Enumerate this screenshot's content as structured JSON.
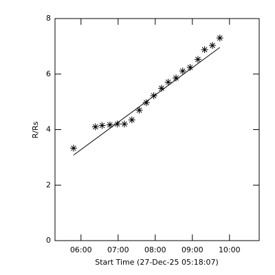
{
  "chart_data": {
    "type": "scatter",
    "ylabel": "R/Rs",
    "xlabel": "Start Time (27-Dec-25 05:18:07)",
    "xlim": [
      5.3,
      10.8
    ],
    "ylim": [
      0,
      8
    ],
    "xticks": [
      {
        "value": 6,
        "label": "06:00"
      },
      {
        "value": 7,
        "label": "07:00"
      },
      {
        "value": 8,
        "label": "08:00"
      },
      {
        "value": 9,
        "label": "09:00"
      },
      {
        "value": 10,
        "label": "10:00"
      }
    ],
    "yticks": [
      0,
      2,
      4,
      6,
      8
    ],
    "series": [
      {
        "marker": "asterisk",
        "color": "#000000",
        "x": [
          5.8,
          6.39,
          6.57,
          6.78,
          6.98,
          7.17,
          7.37,
          7.57,
          7.76,
          7.96,
          8.17,
          8.35,
          8.56,
          8.74,
          8.94,
          9.15,
          9.33,
          9.54,
          9.74
        ],
        "values": [
          3.33,
          4.1,
          4.15,
          4.17,
          4.2,
          4.2,
          4.35,
          4.7,
          4.97,
          5.22,
          5.49,
          5.71,
          5.86,
          6.11,
          6.24,
          6.53,
          6.88,
          7.03,
          7.3
        ]
      },
      {
        "marker": "line",
        "color": "#000000",
        "x": [
          5.8,
          9.74
        ],
        "values": [
          3.08,
          6.96
        ]
      }
    ]
  }
}
